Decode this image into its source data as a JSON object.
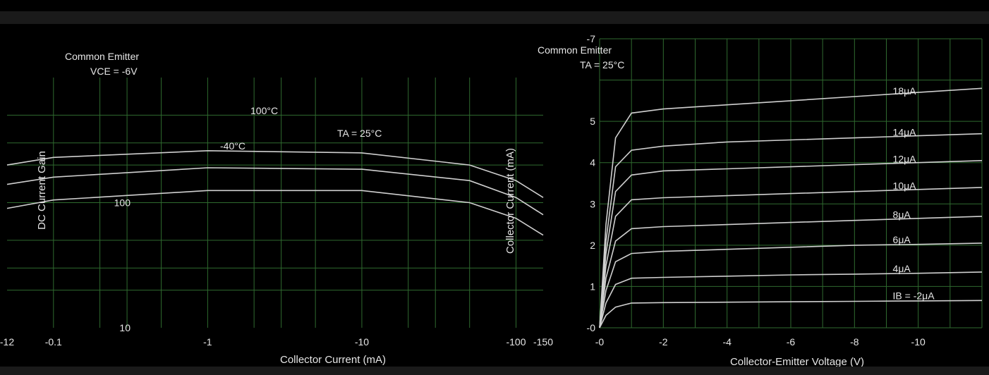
{
  "header": {
    "left_title": "",
    "right_title": ""
  },
  "chart_data": [
    {
      "type": "line",
      "title": "",
      "xlabel": "Collector Current (mA)",
      "ylabel": "DC Current Gain",
      "xscale": "log",
      "yscale": "log",
      "xlim": [
        -0.05,
        -150
      ],
      "ylim": [
        10,
        1000
      ],
      "x_tick_labels": [
        "-12",
        "-0.1",
        "-1",
        "-10",
        "-100",
        "-150"
      ],
      "y_tick_labels": [
        "10",
        "100"
      ],
      "annotations": [
        "Common Emitter",
        "VCE = -6V",
        "TA = 25°C",
        "100°C",
        "-40°C"
      ],
      "series": [
        {
          "name": "100°C",
          "x": [
            -0.05,
            -0.1,
            -1,
            -10,
            -50,
            -100,
            -150
          ],
          "y": [
            200,
            230,
            260,
            250,
            200,
            150,
            110
          ]
        },
        {
          "name": "TA = 25°C",
          "x": [
            -0.05,
            -0.1,
            -1,
            -10,
            -50,
            -100,
            -150
          ],
          "y": [
            140,
            160,
            190,
            185,
            150,
            110,
            80
          ]
        },
        {
          "name": "-40°C",
          "x": [
            -0.05,
            -0.1,
            -1,
            -10,
            -50,
            -100,
            -150
          ],
          "y": [
            90,
            105,
            125,
            125,
            100,
            75,
            55
          ]
        }
      ],
      "grid": true,
      "legend": "none"
    },
    {
      "type": "line",
      "title": "",
      "xlabel": "Collector-Emitter Voltage (V)",
      "ylabel": "Collector Current (mA)",
      "xlim": [
        0,
        -12
      ],
      "ylim": [
        0,
        7
      ],
      "x_tick_labels": [
        "-0",
        "-2",
        "-4",
        "-6",
        "-8",
        "-10"
      ],
      "y_tick_labels": [
        "-0",
        "1",
        "2",
        "3",
        "4",
        "5",
        "-7"
      ],
      "annotations": [
        "Common Emitter",
        "TA = 25°C"
      ],
      "series": [
        {
          "name": "18μA",
          "x": [
            0,
            -0.2,
            -0.5,
            -1,
            -2,
            -4,
            -6,
            -8,
            -10,
            -12
          ],
          "y": [
            0,
            2.5,
            4.6,
            5.2,
            5.3,
            5.4,
            5.5,
            5.6,
            5.7,
            5.8
          ]
        },
        {
          "name": "14μA",
          "x": [
            0,
            -0.2,
            -0.5,
            -1,
            -2,
            -4,
            -6,
            -8,
            -10,
            -12
          ],
          "y": [
            0,
            2.1,
            3.9,
            4.3,
            4.4,
            4.5,
            4.55,
            4.6,
            4.65,
            4.7
          ]
        },
        {
          "name": "12μA",
          "x": [
            0,
            -0.2,
            -0.5,
            -1,
            -2,
            -4,
            -6,
            -8,
            -10,
            -12
          ],
          "y": [
            0,
            1.8,
            3.3,
            3.7,
            3.8,
            3.85,
            3.9,
            3.95,
            4.0,
            4.05
          ]
        },
        {
          "name": "10μA",
          "x": [
            0,
            -0.2,
            -0.5,
            -1,
            -2,
            -4,
            -6,
            -8,
            -10,
            -12
          ],
          "y": [
            0,
            1.5,
            2.7,
            3.1,
            3.15,
            3.2,
            3.25,
            3.3,
            3.35,
            3.4
          ]
        },
        {
          "name": "8μA",
          "x": [
            0,
            -0.2,
            -0.5,
            -1,
            -2,
            -4,
            -6,
            -8,
            -10,
            -12
          ],
          "y": [
            0,
            1.2,
            2.1,
            2.4,
            2.45,
            2.5,
            2.55,
            2.6,
            2.65,
            2.7
          ]
        },
        {
          "name": "6μA",
          "x": [
            0,
            -0.2,
            -0.5,
            -1,
            -2,
            -4,
            -6,
            -8,
            -10,
            -12
          ],
          "y": [
            0,
            0.9,
            1.6,
            1.8,
            1.85,
            1.9,
            1.95,
            2.0,
            2.02,
            2.05
          ]
        },
        {
          "name": "4μA",
          "x": [
            0,
            -0.2,
            -0.5,
            -1,
            -2,
            -4,
            -6,
            -8,
            -10,
            -12
          ],
          "y": [
            0,
            0.6,
            1.05,
            1.2,
            1.22,
            1.25,
            1.28,
            1.3,
            1.32,
            1.35
          ]
        },
        {
          "name": "IB = -2μA",
          "x": [
            0,
            -0.2,
            -0.5,
            -1,
            -2,
            -4,
            -6,
            -8,
            -10,
            -12
          ],
          "y": [
            0,
            0.3,
            0.5,
            0.6,
            0.61,
            0.62,
            0.63,
            0.64,
            0.65,
            0.66
          ]
        }
      ],
      "grid": true,
      "legend": "inline-labels"
    }
  ],
  "colors": {
    "background": "#000000",
    "text": "#e6e6e6",
    "grid": "#2f6a2f",
    "curve": "#cfcfcf",
    "accent_red": "#b0306a"
  }
}
